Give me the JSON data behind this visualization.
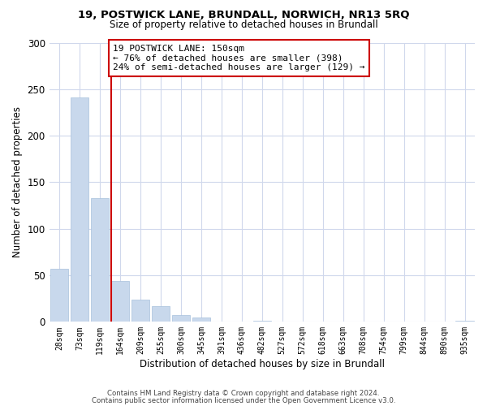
{
  "title1": "19, POSTWICK LANE, BRUNDALL, NORWICH, NR13 5RQ",
  "title2": "Size of property relative to detached houses in Brundall",
  "xlabel": "Distribution of detached houses by size in Brundall",
  "ylabel": "Number of detached properties",
  "bar_labels": [
    "28sqm",
    "73sqm",
    "119sqm",
    "164sqm",
    "209sqm",
    "255sqm",
    "300sqm",
    "345sqm",
    "391sqm",
    "436sqm",
    "482sqm",
    "527sqm",
    "572sqm",
    "618sqm",
    "663sqm",
    "708sqm",
    "754sqm",
    "799sqm",
    "844sqm",
    "890sqm",
    "935sqm"
  ],
  "bar_values": [
    57,
    241,
    133,
    44,
    24,
    17,
    7,
    5,
    0,
    0,
    1,
    0,
    0,
    0,
    0,
    0,
    0,
    0,
    0,
    0,
    1
  ],
  "bar_color": "#c8d8ec",
  "bar_edgecolor": "#a8c0dc",
  "vline_color": "#cc0000",
  "annotation_text": "19 POSTWICK LANE: 150sqm\n← 76% of detached houses are smaller (398)\n24% of semi-detached houses are larger (129) →",
  "annotation_box_edgecolor": "#cc0000",
  "ylim": [
    0,
    300
  ],
  "yticks": [
    0,
    50,
    100,
    150,
    200,
    250,
    300
  ],
  "footnote1": "Contains HM Land Registry data © Crown copyright and database right 2024.",
  "footnote2": "Contains public sector information licensed under the Open Government Licence v3.0.",
  "background_color": "#ffffff",
  "grid_color": "#d0d8ec"
}
